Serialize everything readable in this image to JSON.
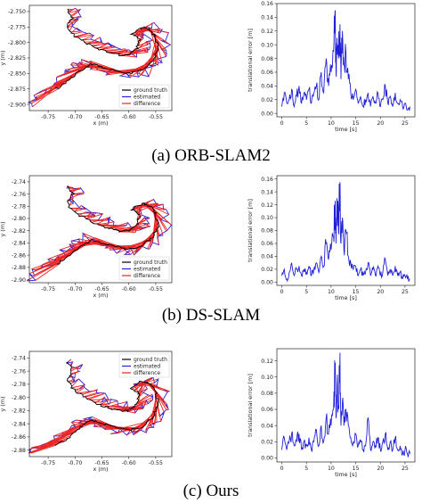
{
  "legend_labels": [
    "ground truth",
    "estimated",
    "difference"
  ],
  "colors": {
    "ground_truth": "#000000",
    "estimated": "#2222e0",
    "difference": "#ee2222",
    "error": "#1f1fd6"
  },
  "chart_data": [
    {
      "id": "orb-traj",
      "type": "line",
      "xlabel": "x (m)",
      "ylabel": "y (m)",
      "xlim": [
        -0.785,
        -0.52
      ],
      "ylim": [
        -2.91,
        -2.74
      ],
      "xticks": [
        "-0.75",
        "-0.70",
        "-0.65",
        "-0.60",
        "-0.55"
      ],
      "xtick_values": [
        -0.75,
        -0.7,
        -0.65,
        -0.6,
        -0.55
      ],
      "yticks": [
        "-2.750",
        "-2.775",
        "-2.800",
        "-2.825",
        "-2.850",
        "-2.875",
        "-2.900"
      ],
      "ytick_values": [
        -2.75,
        -2.775,
        -2.8,
        -2.825,
        -2.85,
        -2.875,
        -2.9
      ],
      "legend": "lower right",
      "ground_truth": [
        [
          -0.715,
          -2.745
        ],
        [
          -0.705,
          -2.76
        ],
        [
          -0.715,
          -2.775
        ],
        [
          -0.7,
          -2.79
        ],
        [
          -0.68,
          -2.8
        ],
        [
          -0.66,
          -2.81
        ],
        [
          -0.64,
          -2.815
        ],
        [
          -0.62,
          -2.82
        ],
        [
          -0.6,
          -2.82
        ],
        [
          -0.585,
          -2.81
        ],
        [
          -0.58,
          -2.795
        ],
        [
          -0.595,
          -2.785
        ],
        [
          -0.575,
          -2.775
        ],
        [
          -0.56,
          -2.78
        ],
        [
          -0.55,
          -2.79
        ],
        [
          -0.545,
          -2.81
        ],
        [
          -0.555,
          -2.83
        ],
        [
          -0.575,
          -2.845
        ],
        [
          -0.6,
          -2.85
        ],
        [
          -0.625,
          -2.845
        ],
        [
          -0.65,
          -2.84
        ],
        [
          -0.67,
          -2.835
        ],
        [
          -0.69,
          -2.845
        ],
        [
          -0.71,
          -2.86
        ],
        [
          -0.735,
          -2.875
        ],
        [
          -0.76,
          -2.885
        ],
        [
          -0.78,
          -2.895
        ]
      ],
      "estimated": [
        [
          -0.71,
          -2.745
        ],
        [
          -0.69,
          -2.755
        ],
        [
          -0.705,
          -2.77
        ],
        [
          -0.68,
          -2.785
        ],
        [
          -0.655,
          -2.795
        ],
        [
          -0.635,
          -2.805
        ],
        [
          -0.61,
          -2.81
        ],
        [
          -0.59,
          -2.82
        ],
        [
          -0.57,
          -2.815
        ],
        [
          -0.56,
          -2.795
        ],
        [
          -0.585,
          -2.78
        ],
        [
          -0.555,
          -2.77
        ],
        [
          -0.535,
          -2.785
        ],
        [
          -0.53,
          -2.815
        ],
        [
          -0.545,
          -2.835
        ],
        [
          -0.57,
          -2.85
        ],
        [
          -0.6,
          -2.855
        ],
        [
          -0.63,
          -2.85
        ],
        [
          -0.655,
          -2.845
        ],
        [
          -0.68,
          -2.83
        ],
        [
          -0.7,
          -2.84
        ],
        [
          -0.72,
          -2.855
        ],
        [
          -0.745,
          -2.87
        ],
        [
          -0.77,
          -2.885
        ],
        [
          -0.785,
          -2.9
        ]
      ]
    },
    {
      "id": "orb-err",
      "type": "line",
      "xlabel": "time [s]",
      "ylabel": "translational error [m]",
      "xlim": [
        -1,
        27
      ],
      "ylim": [
        -0.005,
        0.16
      ],
      "xticks": [
        "0",
        "5",
        "10",
        "15",
        "20",
        "25"
      ],
      "xtick_values": [
        0,
        5,
        10,
        15,
        20,
        25
      ],
      "yticks": [
        "0.00",
        "0.02",
        "0.04",
        "0.06",
        "0.08",
        "0.10",
        "0.12",
        "0.14",
        "0.16"
      ],
      "ytick_values": [
        0,
        0.02,
        0.04,
        0.06,
        0.08,
        0.1,
        0.12,
        0.14,
        0.16
      ],
      "x": [
        0.0,
        0.5,
        1.0,
        1.5,
        2.0,
        2.5,
        3.0,
        3.5,
        4.0,
        4.5,
        5.0,
        5.5,
        6.0,
        6.5,
        7.0,
        7.5,
        8.0,
        8.5,
        9.0,
        9.5,
        10.0,
        10.5,
        10.8,
        11.0,
        11.2,
        11.5,
        11.8,
        12.0,
        12.3,
        12.6,
        13.0,
        13.5,
        14.0,
        14.5,
        15.0,
        15.5,
        16.0,
        16.5,
        17.0,
        17.5,
        18.0,
        18.5,
        19.0,
        19.5,
        20.0,
        20.5,
        21.0,
        21.5,
        22.0,
        22.5,
        23.0,
        23.5,
        24.0,
        24.5,
        25.0,
        25.5,
        26.0
      ],
      "y": [
        0.01,
        0.03,
        0.015,
        0.02,
        0.035,
        0.01,
        0.025,
        0.04,
        0.015,
        0.03,
        0.02,
        0.035,
        0.015,
        0.03,
        0.04,
        0.02,
        0.06,
        0.03,
        0.08,
        0.04,
        0.06,
        0.09,
        0.15,
        0.06,
        0.11,
        0.08,
        0.13,
        0.05,
        0.12,
        0.07,
        0.09,
        0.05,
        0.03,
        0.02,
        0.035,
        0.015,
        0.025,
        0.01,
        0.02,
        0.03,
        0.01,
        0.025,
        0.015,
        0.03,
        0.01,
        0.02,
        0.04,
        0.015,
        0.025,
        0.01,
        0.03,
        0.015,
        0.02,
        0.01,
        0.015,
        0.005,
        0.01
      ]
    },
    {
      "id": "ds-traj",
      "type": "line",
      "xlabel": "x (m)",
      "ylabel": "y (m)",
      "xlim": [
        -0.785,
        -0.52
      ],
      "ylim": [
        -2.905,
        -2.73
      ],
      "xticks": [
        "-0.75",
        "-0.70",
        "-0.65",
        "-0.60",
        "-0.55"
      ],
      "xtick_values": [
        -0.75,
        -0.7,
        -0.65,
        -0.6,
        -0.55
      ],
      "yticks": [
        "-2.74",
        "-2.76",
        "-2.78",
        "-2.80",
        "-2.82",
        "-2.84",
        "-2.86",
        "-2.88",
        "-2.90"
      ],
      "ytick_values": [
        -2.74,
        -2.76,
        -2.78,
        -2.8,
        -2.82,
        -2.84,
        -2.86,
        -2.88,
        -2.9
      ],
      "legend": "lower right",
      "ground_truth": [
        [
          -0.715,
          -2.745
        ],
        [
          -0.705,
          -2.76
        ],
        [
          -0.715,
          -2.775
        ],
        [
          -0.7,
          -2.79
        ],
        [
          -0.68,
          -2.8
        ],
        [
          -0.66,
          -2.81
        ],
        [
          -0.64,
          -2.815
        ],
        [
          -0.62,
          -2.82
        ],
        [
          -0.6,
          -2.82
        ],
        [
          -0.585,
          -2.81
        ],
        [
          -0.58,
          -2.795
        ],
        [
          -0.595,
          -2.785
        ],
        [
          -0.575,
          -2.775
        ],
        [
          -0.56,
          -2.78
        ],
        [
          -0.55,
          -2.79
        ],
        [
          -0.545,
          -2.81
        ],
        [
          -0.555,
          -2.83
        ],
        [
          -0.575,
          -2.845
        ],
        [
          -0.6,
          -2.85
        ],
        [
          -0.625,
          -2.845
        ],
        [
          -0.65,
          -2.84
        ],
        [
          -0.67,
          -2.835
        ],
        [
          -0.69,
          -2.845
        ],
        [
          -0.71,
          -2.86
        ],
        [
          -0.735,
          -2.875
        ],
        [
          -0.76,
          -2.885
        ],
        [
          -0.78,
          -2.895
        ]
      ],
      "estimated": [
        [
          -0.71,
          -2.745
        ],
        [
          -0.69,
          -2.755
        ],
        [
          -0.705,
          -2.77
        ],
        [
          -0.68,
          -2.785
        ],
        [
          -0.655,
          -2.795
        ],
        [
          -0.635,
          -2.805
        ],
        [
          -0.61,
          -2.81
        ],
        [
          -0.59,
          -2.82
        ],
        [
          -0.57,
          -2.815
        ],
        [
          -0.56,
          -2.795
        ],
        [
          -0.585,
          -2.78
        ],
        [
          -0.555,
          -2.77
        ],
        [
          -0.535,
          -2.785
        ],
        [
          -0.53,
          -2.815
        ],
        [
          -0.545,
          -2.835
        ],
        [
          -0.57,
          -2.85
        ],
        [
          -0.6,
          -2.855
        ],
        [
          -0.63,
          -2.85
        ],
        [
          -0.655,
          -2.845
        ],
        [
          -0.68,
          -2.83
        ],
        [
          -0.7,
          -2.84
        ],
        [
          -0.72,
          -2.855
        ],
        [
          -0.745,
          -2.87
        ],
        [
          -0.77,
          -2.885
        ],
        [
          -0.785,
          -2.9
        ]
      ]
    },
    {
      "id": "ds-err",
      "type": "line",
      "xlabel": "time [s]",
      "ylabel": "translational error [m]",
      "xlim": [
        -1,
        27
      ],
      "ylim": [
        -0.005,
        0.165
      ],
      "xticks": [
        "0",
        "5",
        "10",
        "15",
        "20",
        "25"
      ],
      "xtick_values": [
        0,
        5,
        10,
        15,
        20,
        25
      ],
      "yticks": [
        "0.00",
        "0.02",
        "0.04",
        "0.06",
        "0.08",
        "0.10",
        "0.12",
        "0.14",
        "0.16"
      ],
      "ytick_values": [
        0,
        0.02,
        0.04,
        0.06,
        0.08,
        0.1,
        0.12,
        0.14,
        0.16
      ],
      "x": [
        0.0,
        0.5,
        1.0,
        1.5,
        2.0,
        2.5,
        3.0,
        3.5,
        4.0,
        4.5,
        5.0,
        5.5,
        6.0,
        6.5,
        7.0,
        7.5,
        8.0,
        8.5,
        9.0,
        9.5,
        10.0,
        10.5,
        10.8,
        11.0,
        11.2,
        11.5,
        11.8,
        12.0,
        12.3,
        12.6,
        13.0,
        13.5,
        14.0,
        14.5,
        15.0,
        15.5,
        16.0,
        16.5,
        17.0,
        17.5,
        18.0,
        18.5,
        19.0,
        19.5,
        20.0,
        20.5,
        21.0,
        21.5,
        22.0,
        22.5,
        23.0,
        23.5,
        24.0,
        24.5,
        25.0,
        25.5,
        26.0
      ],
      "y": [
        0.01,
        0.02,
        0.005,
        0.015,
        0.03,
        0.01,
        0.02,
        0.025,
        0.01,
        0.02,
        0.015,
        0.025,
        0.01,
        0.02,
        0.03,
        0.015,
        0.04,
        0.025,
        0.06,
        0.035,
        0.05,
        0.07,
        0.12,
        0.06,
        0.13,
        0.08,
        0.155,
        0.06,
        0.1,
        0.05,
        0.08,
        0.04,
        0.03,
        0.02,
        0.025,
        0.01,
        0.02,
        0.01,
        0.015,
        0.03,
        0.01,
        0.02,
        0.01,
        0.025,
        0.01,
        0.015,
        0.035,
        0.01,
        0.02,
        0.01,
        0.025,
        0.01,
        0.015,
        0.005,
        0.01,
        0.005,
        0.005
      ]
    },
    {
      "id": "ours-traj",
      "type": "line",
      "xlabel": "x (m)",
      "ylabel": "y (m)",
      "xlim": [
        -0.785,
        -0.52
      ],
      "ylim": [
        -2.89,
        -2.73
      ],
      "xticks": [
        "-0.75",
        "-0.70",
        "-0.65",
        "-0.60",
        "-0.55"
      ],
      "xtick_values": [
        -0.75,
        -0.7,
        -0.65,
        -0.6,
        -0.55
      ],
      "yticks": [
        "-2.74",
        "-2.76",
        "-2.78",
        "-2.80",
        "-2.82",
        "-2.84",
        "-2.86",
        "-2.88"
      ],
      "ytick_values": [
        -2.74,
        -2.76,
        -2.78,
        -2.8,
        -2.82,
        -2.84,
        -2.86,
        -2.88
      ],
      "legend": "upper right",
      "ground_truth": [
        [
          -0.715,
          -2.745
        ],
        [
          -0.705,
          -2.76
        ],
        [
          -0.715,
          -2.775
        ],
        [
          -0.7,
          -2.79
        ],
        [
          -0.68,
          -2.8
        ],
        [
          -0.66,
          -2.81
        ],
        [
          -0.64,
          -2.815
        ],
        [
          -0.62,
          -2.82
        ],
        [
          -0.6,
          -2.82
        ],
        [
          -0.585,
          -2.81
        ],
        [
          -0.58,
          -2.795
        ],
        [
          -0.595,
          -2.785
        ],
        [
          -0.575,
          -2.775
        ],
        [
          -0.56,
          -2.78
        ],
        [
          -0.55,
          -2.79
        ],
        [
          -0.545,
          -2.81
        ],
        [
          -0.555,
          -2.83
        ],
        [
          -0.575,
          -2.845
        ],
        [
          -0.6,
          -2.85
        ],
        [
          -0.625,
          -2.845
        ],
        [
          -0.65,
          -2.84
        ],
        [
          -0.67,
          -2.835
        ],
        [
          -0.69,
          -2.845
        ],
        [
          -0.71,
          -2.86
        ],
        [
          -0.735,
          -2.872
        ],
        [
          -0.76,
          -2.88
        ],
        [
          -0.78,
          -2.885
        ]
      ],
      "estimated": [
        [
          -0.71,
          -2.745
        ],
        [
          -0.69,
          -2.755
        ],
        [
          -0.705,
          -2.77
        ],
        [
          -0.68,
          -2.785
        ],
        [
          -0.655,
          -2.795
        ],
        [
          -0.635,
          -2.805
        ],
        [
          -0.61,
          -2.81
        ],
        [
          -0.59,
          -2.82
        ],
        [
          -0.57,
          -2.815
        ],
        [
          -0.56,
          -2.795
        ],
        [
          -0.585,
          -2.78
        ],
        [
          -0.555,
          -2.77
        ],
        [
          -0.535,
          -2.785
        ],
        [
          -0.53,
          -2.815
        ],
        [
          -0.545,
          -2.835
        ],
        [
          -0.57,
          -2.85
        ],
        [
          -0.6,
          -2.855
        ],
        [
          -0.63,
          -2.85
        ],
        [
          -0.655,
          -2.845
        ],
        [
          -0.68,
          -2.83
        ],
        [
          -0.7,
          -2.84
        ],
        [
          -0.72,
          -2.855
        ],
        [
          -0.745,
          -2.868
        ],
        [
          -0.77,
          -2.878
        ],
        [
          -0.785,
          -2.885
        ]
      ]
    },
    {
      "id": "ours-err",
      "type": "line",
      "xlabel": "time [s]",
      "ylabel": "translational error [m]",
      "xlim": [
        -1,
        27
      ],
      "ylim": [
        -0.005,
        0.135
      ],
      "xticks": [
        "0",
        "5",
        "10",
        "15",
        "20",
        "25"
      ],
      "xtick_values": [
        0,
        5,
        10,
        15,
        20,
        25
      ],
      "yticks": [
        "0.00",
        "0.02",
        "0.04",
        "0.06",
        "0.08",
        "0.10",
        "0.12"
      ],
      "ytick_values": [
        0,
        0.02,
        0.04,
        0.06,
        0.08,
        0.1,
        0.12
      ],
      "x": [
        0.0,
        0.5,
        1.0,
        1.5,
        2.0,
        2.5,
        3.0,
        3.5,
        4.0,
        4.5,
        5.0,
        5.5,
        6.0,
        6.5,
        7.0,
        7.5,
        8.0,
        8.5,
        9.0,
        9.5,
        10.0,
        10.5,
        10.8,
        11.0,
        11.2,
        11.5,
        11.8,
        12.0,
        12.3,
        12.6,
        13.0,
        13.5,
        14.0,
        14.5,
        15.0,
        15.5,
        16.0,
        16.5,
        17.0,
        17.5,
        18.0,
        18.5,
        19.0,
        19.5,
        20.0,
        20.5,
        21.0,
        21.5,
        22.0,
        22.5,
        23.0,
        23.5,
        24.0,
        24.5,
        25.0,
        25.5,
        26.0
      ],
      "y": [
        0.01,
        0.025,
        0.01,
        0.02,
        0.03,
        0.015,
        0.02,
        0.03,
        0.01,
        0.02,
        0.015,
        0.025,
        0.01,
        0.02,
        0.035,
        0.015,
        0.04,
        0.02,
        0.05,
        0.03,
        0.04,
        0.06,
        0.11,
        0.05,
        0.09,
        0.06,
        0.13,
        0.04,
        0.07,
        0.04,
        0.06,
        0.04,
        0.025,
        0.02,
        0.03,
        0.015,
        0.02,
        0.01,
        0.015,
        0.05,
        0.01,
        0.02,
        0.015,
        0.025,
        0.01,
        0.02,
        0.03,
        0.01,
        0.02,
        0.01,
        0.025,
        0.01,
        0.015,
        0.005,
        0.01,
        0.005,
        0.005
      ]
    }
  ],
  "captions": [
    "(a) ORB-SLAM2",
    "(b) DS-SLAM",
    "(c) Ours"
  ]
}
